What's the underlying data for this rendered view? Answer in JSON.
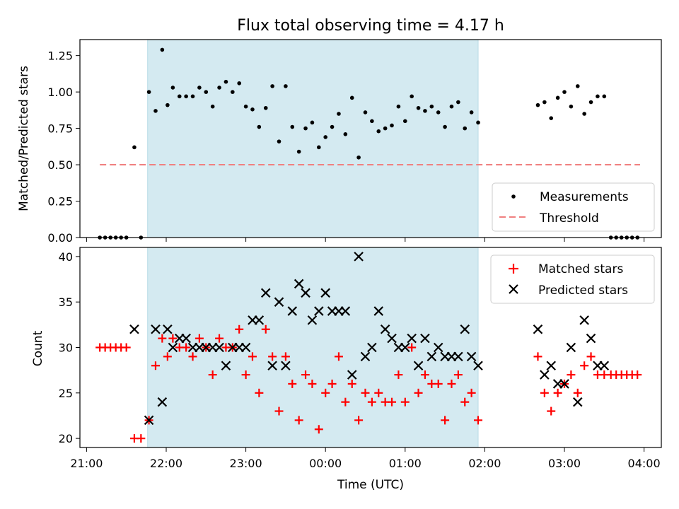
{
  "chart_data": [
    {
      "type": "scatter",
      "title": "Flux total observing time = 4.17 h",
      "xlabel": "",
      "ylabel": "Matched/Predicted stars",
      "xlim": [
        "20:55",
        "04:13"
      ],
      "ylim": [
        0.0,
        1.36
      ],
      "yticks": [
        "0.00",
        "0.25",
        "0.50",
        "0.75",
        "1.00",
        "1.25"
      ],
      "shaded_region": [
        "21:46",
        "01:55"
      ],
      "threshold": {
        "name": "Threshold",
        "value": 0.5,
        "x": [
          "21:10",
          "03:57"
        ],
        "color": "#f08080"
      },
      "legend_position": "lower right",
      "series": [
        {
          "name": "Measurements",
          "color": "#000000",
          "points": [
            [
              "21:10",
              0.0
            ],
            [
              "21:14",
              0.0
            ],
            [
              "21:18",
              0.0
            ],
            [
              "21:22",
              0.0
            ],
            [
              "21:26",
              0.0
            ],
            [
              "21:30",
              0.0
            ],
            [
              "21:36",
              0.62
            ],
            [
              "21:41",
              0.0
            ],
            [
              "21:47",
              1.0
            ],
            [
              "21:52",
              0.87
            ],
            [
              "21:57",
              1.29
            ],
            [
              "22:01",
              0.91
            ],
            [
              "22:05",
              1.03
            ],
            [
              "22:10",
              0.97
            ],
            [
              "22:15",
              0.97
            ],
            [
              "22:20",
              0.97
            ],
            [
              "22:25",
              1.03
            ],
            [
              "22:30",
              1.0
            ],
            [
              "22:35",
              0.9
            ],
            [
              "22:40",
              1.03
            ],
            [
              "22:45",
              1.07
            ],
            [
              "22:50",
              1.0
            ],
            [
              "22:55",
              1.06
            ],
            [
              "23:00",
              0.9
            ],
            [
              "23:05",
              0.88
            ],
            [
              "23:10",
              0.76
            ],
            [
              "23:15",
              0.89
            ],
            [
              "23:20",
              1.04
            ],
            [
              "23:25",
              0.66
            ],
            [
              "23:30",
              1.04
            ],
            [
              "23:35",
              0.76
            ],
            [
              "23:40",
              0.59
            ],
            [
              "23:45",
              0.75
            ],
            [
              "23:50",
              0.79
            ],
            [
              "23:55",
              0.62
            ],
            [
              "00:00",
              0.69
            ],
            [
              "00:05",
              0.76
            ],
            [
              "00:10",
              0.85
            ],
            [
              "00:15",
              0.71
            ],
            [
              "00:20",
              0.96
            ],
            [
              "00:25",
              0.55
            ],
            [
              "00:30",
              0.86
            ],
            [
              "00:35",
              0.8
            ],
            [
              "00:40",
              0.73
            ],
            [
              "00:45",
              0.75
            ],
            [
              "00:50",
              0.77
            ],
            [
              "00:55",
              0.9
            ],
            [
              "01:00",
              0.8
            ],
            [
              "01:05",
              0.97
            ],
            [
              "01:10",
              0.89
            ],
            [
              "01:15",
              0.87
            ],
            [
              "01:20",
              0.9
            ],
            [
              "01:25",
              0.86
            ],
            [
              "01:30",
              0.76
            ],
            [
              "01:35",
              0.9
            ],
            [
              "01:40",
              0.93
            ],
            [
              "01:45",
              0.75
            ],
            [
              "01:50",
              0.86
            ],
            [
              "01:55",
              0.79
            ],
            [
              "02:40",
              0.91
            ],
            [
              "02:45",
              0.93
            ],
            [
              "02:50",
              0.82
            ],
            [
              "02:55",
              0.96
            ],
            [
              "03:00",
              1.0
            ],
            [
              "03:05",
              0.9
            ],
            [
              "03:10",
              1.04
            ],
            [
              "03:15",
              0.85
            ],
            [
              "03:20",
              0.93
            ],
            [
              "03:25",
              0.97
            ],
            [
              "03:30",
              0.97
            ],
            [
              "03:35",
              0.0
            ],
            [
              "03:39",
              0.0
            ],
            [
              "03:43",
              0.0
            ],
            [
              "03:47",
              0.0
            ],
            [
              "03:51",
              0.0
            ],
            [
              "03:55",
              0.0
            ]
          ]
        }
      ],
      "legend": [
        "Measurements",
        "Threshold"
      ]
    },
    {
      "type": "scatter",
      "title": "",
      "xlabel": "Time (UTC)",
      "ylabel": "Count",
      "xlim": [
        "20:55",
        "04:13"
      ],
      "ylim": [
        19.0,
        41.0
      ],
      "yticks": [
        "20",
        "25",
        "30",
        "35",
        "40"
      ],
      "xticks": [
        "21:00",
        "22:00",
        "23:00",
        "00:00",
        "01:00",
        "02:00",
        "03:00",
        "04:00"
      ],
      "shaded_region": [
        "21:46",
        "01:55"
      ],
      "legend_position": "upper right",
      "series": [
        {
          "name": "Matched stars",
          "marker": "+",
          "color": "#ff0000",
          "points": [
            [
              "21:10",
              30
            ],
            [
              "21:14",
              30
            ],
            [
              "21:18",
              30
            ],
            [
              "21:22",
              30
            ],
            [
              "21:26",
              30
            ],
            [
              "21:30",
              30
            ],
            [
              "21:36",
              20
            ],
            [
              "21:41",
              20
            ],
            [
              "21:47",
              22
            ],
            [
              "21:52",
              28
            ],
            [
              "21:57",
              31
            ],
            [
              "22:01",
              29
            ],
            [
              "22:05",
              31
            ],
            [
              "22:10",
              30
            ],
            [
              "22:15",
              30
            ],
            [
              "22:20",
              29
            ],
            [
              "22:25",
              31
            ],
            [
              "22:30",
              30
            ],
            [
              "22:35",
              27
            ],
            [
              "22:40",
              31
            ],
            [
              "22:45",
              30
            ],
            [
              "22:50",
              30
            ],
            [
              "22:55",
              32
            ],
            [
              "23:00",
              27
            ],
            [
              "23:05",
              29
            ],
            [
              "23:10",
              25
            ],
            [
              "23:15",
              32
            ],
            [
              "23:20",
              29
            ],
            [
              "23:25",
              23
            ],
            [
              "23:30",
              29
            ],
            [
              "23:35",
              26
            ],
            [
              "23:40",
              22
            ],
            [
              "23:45",
              27
            ],
            [
              "23:50",
              26
            ],
            [
              "23:55",
              21
            ],
            [
              "00:00",
              25
            ],
            [
              "00:05",
              26
            ],
            [
              "00:10",
              29
            ],
            [
              "00:15",
              24
            ],
            [
              "00:20",
              26
            ],
            [
              "00:25",
              22
            ],
            [
              "00:30",
              25
            ],
            [
              "00:35",
              24
            ],
            [
              "00:40",
              25
            ],
            [
              "00:45",
              24
            ],
            [
              "00:50",
              24
            ],
            [
              "00:55",
              27
            ],
            [
              "01:00",
              24
            ],
            [
              "01:05",
              30
            ],
            [
              "01:10",
              25
            ],
            [
              "01:15",
              27
            ],
            [
              "01:20",
              26
            ],
            [
              "01:25",
              26
            ],
            [
              "01:30",
              22
            ],
            [
              "01:35",
              26
            ],
            [
              "01:40",
              27
            ],
            [
              "01:45",
              24
            ],
            [
              "01:50",
              25
            ],
            [
              "01:55",
              22
            ],
            [
              "02:40",
              29
            ],
            [
              "02:45",
              25
            ],
            [
              "02:50",
              23
            ],
            [
              "02:55",
              25
            ],
            [
              "03:00",
              26
            ],
            [
              "03:05",
              27
            ],
            [
              "03:10",
              25
            ],
            [
              "03:15",
              28
            ],
            [
              "03:20",
              29
            ],
            [
              "03:25",
              27
            ],
            [
              "03:30",
              27
            ],
            [
              "03:35",
              27
            ],
            [
              "03:39",
              27
            ],
            [
              "03:43",
              27
            ],
            [
              "03:47",
              27
            ],
            [
              "03:51",
              27
            ],
            [
              "03:55",
              27
            ]
          ]
        },
        {
          "name": "Predicted stars",
          "marker": "x",
          "color": "#000000",
          "points": [
            [
              "21:36",
              32
            ],
            [
              "21:47",
              22
            ],
            [
              "21:52",
              32
            ],
            [
              "21:57",
              24
            ],
            [
              "22:01",
              32
            ],
            [
              "22:05",
              30
            ],
            [
              "22:10",
              31
            ],
            [
              "22:15",
              31
            ],
            [
              "22:20",
              30
            ],
            [
              "22:25",
              30
            ],
            [
              "22:30",
              30
            ],
            [
              "22:35",
              30
            ],
            [
              "22:40",
              30
            ],
            [
              "22:45",
              28
            ],
            [
              "22:50",
              30
            ],
            [
              "22:55",
              30
            ],
            [
              "23:00",
              30
            ],
            [
              "23:05",
              33
            ],
            [
              "23:10",
              33
            ],
            [
              "23:15",
              36
            ],
            [
              "23:20",
              28
            ],
            [
              "23:25",
              35
            ],
            [
              "23:30",
              28
            ],
            [
              "23:35",
              34
            ],
            [
              "23:40",
              37
            ],
            [
              "23:45",
              36
            ],
            [
              "23:50",
              33
            ],
            [
              "23:55",
              34
            ],
            [
              "00:00",
              36
            ],
            [
              "00:05",
              34
            ],
            [
              "00:10",
              34
            ],
            [
              "00:15",
              34
            ],
            [
              "00:20",
              27
            ],
            [
              "00:25",
              40
            ],
            [
              "00:30",
              29
            ],
            [
              "00:35",
              30
            ],
            [
              "00:40",
              34
            ],
            [
              "00:45",
              32
            ],
            [
              "00:50",
              31
            ],
            [
              "00:55",
              30
            ],
            [
              "01:00",
              30
            ],
            [
              "01:05",
              31
            ],
            [
              "01:10",
              28
            ],
            [
              "01:15",
              31
            ],
            [
              "01:20",
              29
            ],
            [
              "01:25",
              30
            ],
            [
              "01:30",
              29
            ],
            [
              "01:35",
              29
            ],
            [
              "01:40",
              29
            ],
            [
              "01:45",
              32
            ],
            [
              "01:50",
              29
            ],
            [
              "01:55",
              28
            ],
            [
              "02:40",
              32
            ],
            [
              "02:45",
              27
            ],
            [
              "02:50",
              28
            ],
            [
              "02:55",
              26
            ],
            [
              "03:00",
              26
            ],
            [
              "03:05",
              30
            ],
            [
              "03:10",
              24
            ],
            [
              "03:15",
              33
            ],
            [
              "03:20",
              31
            ],
            [
              "03:25",
              28
            ],
            [
              "03:30",
              28
            ]
          ]
        }
      ],
      "legend": [
        "Matched stars",
        "Predicted stars"
      ]
    }
  ],
  "colors": {
    "shade": "#d4eaf1",
    "shade_edge": "#b7dbe6",
    "threshold": "#f08080"
  }
}
